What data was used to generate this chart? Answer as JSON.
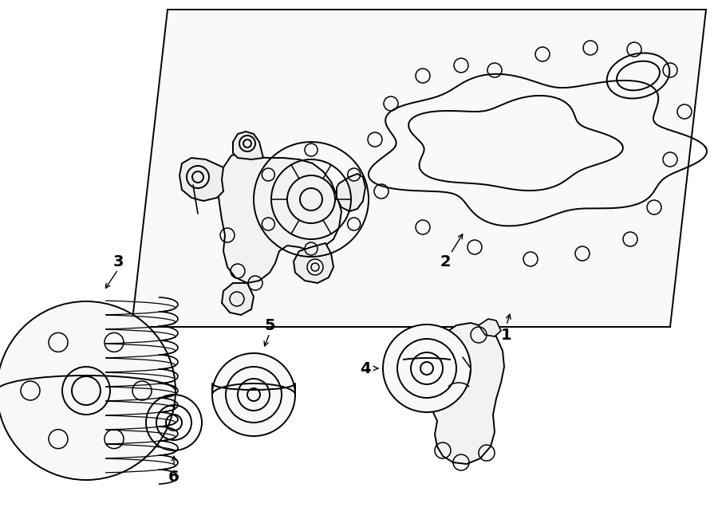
{
  "bg_color": "#ffffff",
  "line_color": "#000000",
  "lw": 1.4,
  "fig_width": 9.0,
  "fig_height": 6.61,
  "dpi": 100
}
